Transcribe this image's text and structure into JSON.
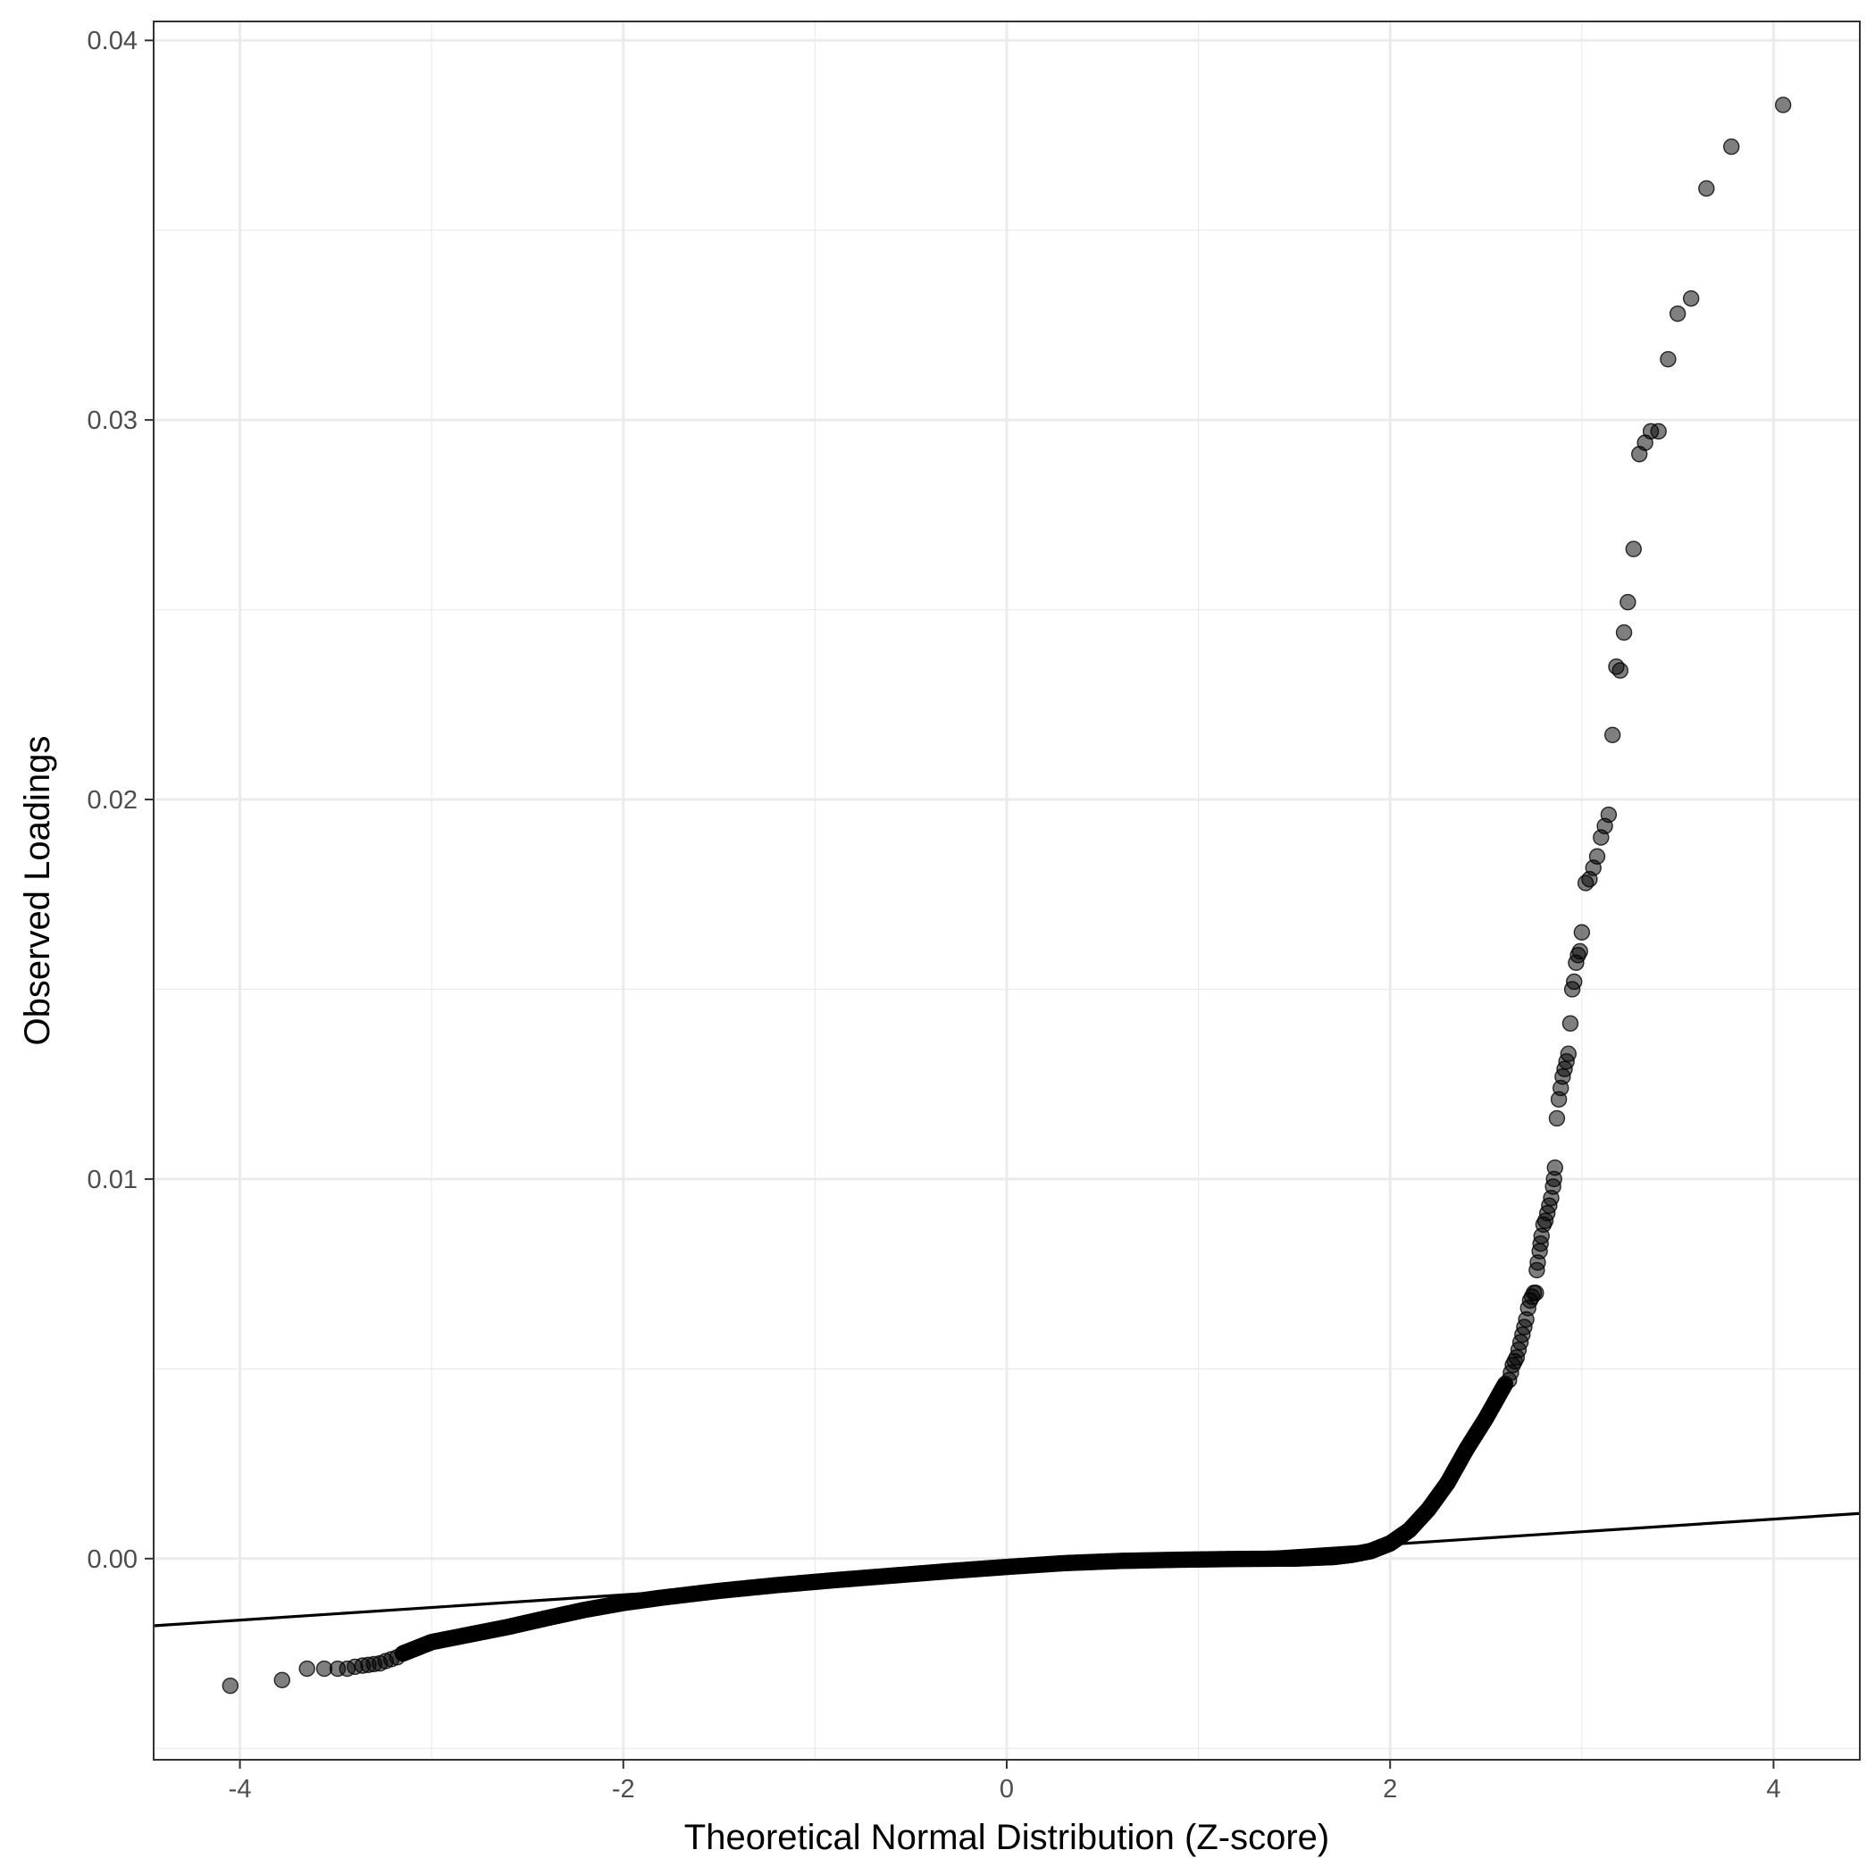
{
  "chart_data": {
    "type": "scatter",
    "title": "",
    "xlabel": "Theoretical Normal Distribution (Z-score)",
    "ylabel": "Observed Loadings",
    "xlim": [
      -4.45,
      4.45
    ],
    "ylim": [
      -0.0053,
      0.0405
    ],
    "x_ticks": [
      -4,
      -2,
      0,
      2,
      4
    ],
    "x_tick_labels": [
      "-4",
      "-2",
      "0",
      "2",
      "4"
    ],
    "y_ticks": [
      0.0,
      0.01,
      0.02,
      0.03,
      0.04
    ],
    "y_tick_labels": [
      "0.00",
      "0.01",
      "0.02",
      "0.03",
      "0.04"
    ],
    "x_minor_ticks": [
      -3,
      -1,
      1,
      3
    ],
    "y_minor_ticks": [
      -0.005,
      0.005,
      0.015,
      0.025,
      0.035
    ],
    "grid": true,
    "legend": "none",
    "point_color": "#000000",
    "point_opacity": 0.5,
    "line_color": "#000000",
    "reference_line": {
      "x": [
        -4.45,
        4.45
      ],
      "y": [
        -0.00177,
        0.00119
      ]
    },
    "tail_points": {
      "x": [
        -4.05,
        -3.78,
        -3.65,
        -3.56,
        -3.49,
        -3.44,
        -3.4,
        -3.36,
        -3.33,
        -3.3,
        -3.27,
        -3.24,
        -3.21,
        -3.18,
        -3.15,
        2.62,
        2.63,
        2.64,
        2.65,
        2.66,
        2.67,
        2.68,
        2.69,
        2.7,
        2.71,
        2.72,
        2.73,
        2.74,
        2.75,
        2.76,
        2.765,
        2.77,
        2.78,
        2.785,
        2.79,
        2.8,
        2.81,
        2.82,
        2.83,
        2.84,
        2.85,
        2.855,
        2.86,
        2.87,
        2.88,
        2.89,
        2.9,
        2.91,
        2.92,
        2.93,
        2.94,
        2.95,
        2.96,
        2.97,
        2.98,
        2.99,
        3.0,
        3.02,
        3.04,
        3.06,
        3.08,
        3.1,
        3.12,
        3.14,
        3.16,
        3.18,
        3.2,
        3.22,
        3.24,
        3.27,
        3.3,
        3.33,
        3.36,
        3.4,
        3.45,
        3.5,
        3.57,
        3.65,
        3.78,
        4.05
      ],
      "y": [
        -0.00335,
        -0.0032,
        -0.0029,
        -0.0029,
        -0.0029,
        -0.0029,
        -0.00285,
        -0.00282,
        -0.0028,
        -0.00278,
        -0.00276,
        -0.0027,
        -0.00265,
        -0.0026,
        -0.0025,
        0.0047,
        0.0049,
        0.0051,
        0.0052,
        0.0053,
        0.0055,
        0.0057,
        0.0059,
        0.0061,
        0.0063,
        0.0066,
        0.0068,
        0.0069,
        0.007,
        0.007,
        0.0076,
        0.0078,
        0.0081,
        0.0083,
        0.0085,
        0.0088,
        0.0089,
        0.0091,
        0.0093,
        0.0095,
        0.0098,
        0.01,
        0.0103,
        0.0116,
        0.0121,
        0.0124,
        0.0127,
        0.0129,
        0.0131,
        0.0133,
        0.0141,
        0.015,
        0.0152,
        0.0157,
        0.0159,
        0.016,
        0.0165,
        0.0178,
        0.0179,
        0.0182,
        0.0185,
        0.019,
        0.0193,
        0.0196,
        0.0217,
        0.0235,
        0.0234,
        0.0244,
        0.0252,
        0.0266,
        0.0291,
        0.0294,
        0.0297,
        0.0297,
        0.0316,
        0.0328,
        0.0332,
        0.0361,
        0.0372,
        0.0383
      ]
    },
    "body_curve": {
      "x": [
        -3.15,
        -3.0,
        -2.8,
        -2.6,
        -2.4,
        -2.2,
        -2.0,
        -1.8,
        -1.5,
        -1.2,
        -0.9,
        -0.6,
        -0.3,
        0.0,
        0.3,
        0.6,
        0.9,
        1.2,
        1.5,
        1.7,
        1.8,
        1.9,
        2.0,
        2.1,
        2.2,
        2.3,
        2.4,
        2.5,
        2.6
      ],
      "y": [
        -0.0025,
        -0.0022,
        -0.002,
        -0.0018,
        -0.00157,
        -0.00135,
        -0.00117,
        -0.00103,
        -0.00085,
        -0.0007,
        -0.00057,
        -0.00045,
        -0.00033,
        -0.00022,
        -0.00012,
        -6e-05,
        -3e-05,
        -1e-05,
        0.0,
        4e-05,
        0.0001,
        0.0002,
        0.0004,
        0.00075,
        0.0013,
        0.002,
        0.0029,
        0.0037,
        0.0046
      ]
    }
  }
}
